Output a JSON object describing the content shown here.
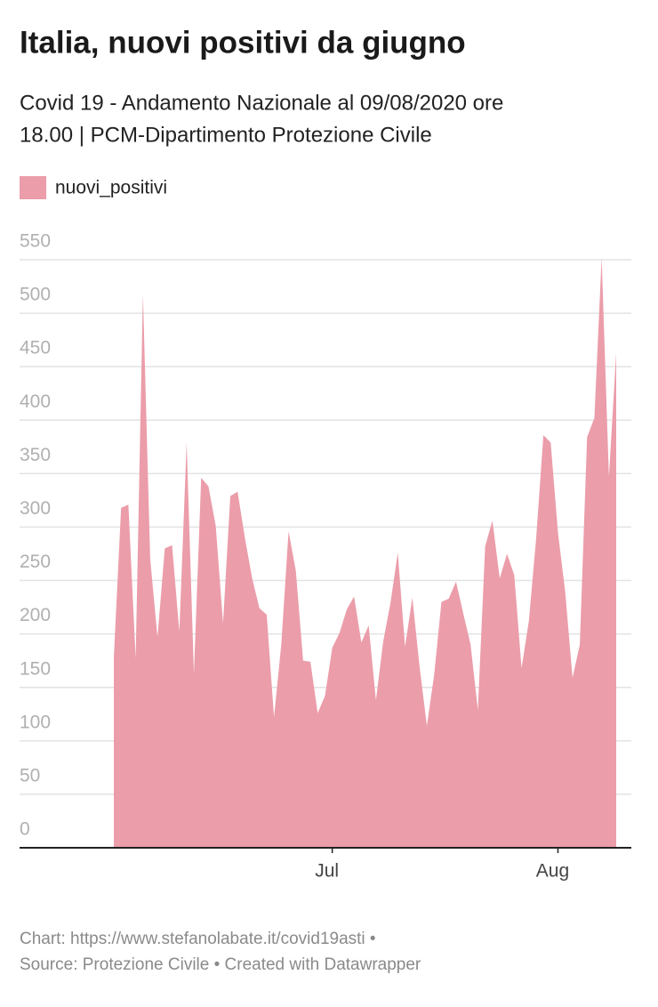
{
  "chart_data": {
    "type": "area",
    "title": "Italia, nuovi positivi da giugno",
    "subtitle_line1": "Covid 19 - Andamento Nazionale al 09/08/2020 ore",
    "subtitle_line2": "18.00 | PCM-Dipartimento Protezione Civile",
    "credit": "Chart: https://www.stefanolabate.it/covid19asti •",
    "source": "Source: Protezione Civile • Created with Datawrapper",
    "categories": [
      null,
      null,
      null,
      null,
      null,
      null,
      null,
      null,
      null,
      null,
      null,
      null,
      null,
      null,
      null,
      null,
      null,
      null,
      null,
      null,
      null,
      null,
      null,
      null,
      null,
      null,
      null,
      null,
      null,
      null,
      "Jul",
      null,
      null,
      null,
      null,
      null,
      null,
      null,
      null,
      null,
      null,
      null,
      null,
      null,
      null,
      null,
      null,
      null,
      null,
      null,
      null,
      null,
      null,
      null,
      null,
      null,
      null,
      null,
      null,
      null,
      null,
      "Aug",
      null,
      null,
      null,
      null,
      null,
      null,
      null,
      null
    ],
    "series": [
      {
        "name": "nuovi_positivi",
        "color": "#eb9daa",
        "values": [
          178,
          318,
          321,
          177,
          518,
          270,
          197,
          280,
          283,
          202,
          379,
          163,
          346,
          338,
          301,
          210,
          329,
          333,
          290,
          252,
          224,
          218,
          122,
          190,
          296,
          259,
          175,
          174,
          126,
          142,
          187,
          201,
          223,
          235,
          192,
          208,
          138,
          193,
          229,
          276,
          188,
          234,
          169,
          114,
          162,
          230,
          233,
          249,
          219,
          190,
          129,
          282,
          306,
          252,
          275,
          255,
          168,
          212,
          289,
          386,
          379,
          295,
          239,
          159,
          190,
          384,
          402,
          552,
          347,
          463
        ]
      }
    ],
    "ylim": [
      0,
      550
    ],
    "yticks": [
      0,
      50,
      100,
      150,
      200,
      250,
      300,
      350,
      400,
      450,
      500,
      550
    ],
    "grid": true
  }
}
